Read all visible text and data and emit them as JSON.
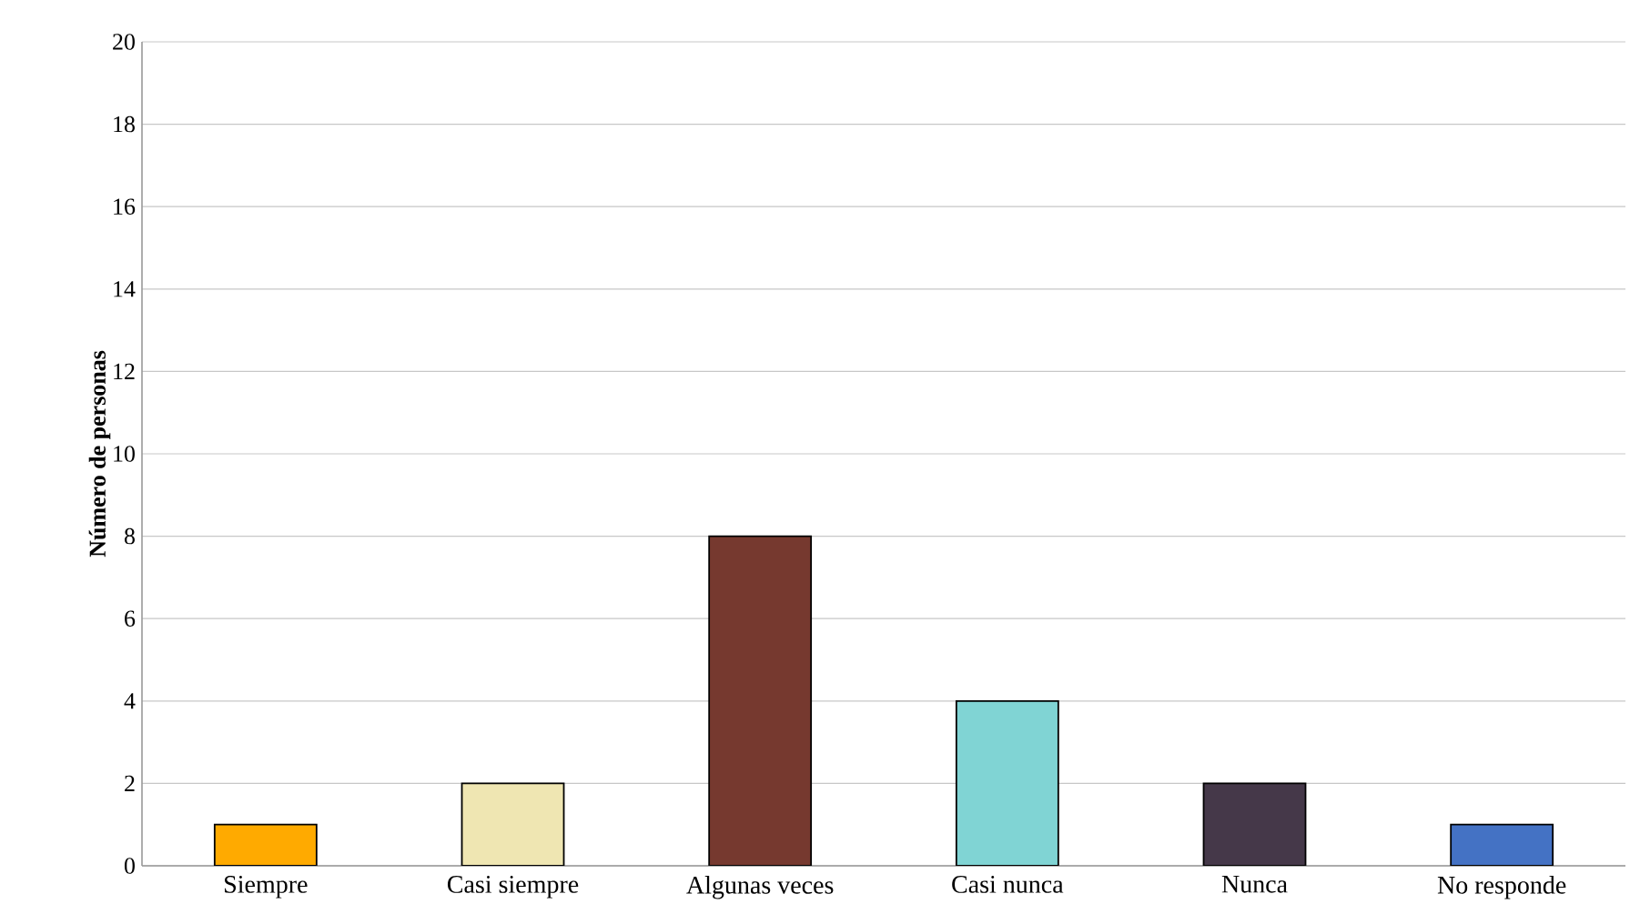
{
  "chart_data": {
    "type": "bar",
    "ylabel": "Número de personas",
    "categories": [
      "Siempre",
      "Casi siempre",
      "Algunas veces",
      "Casi nunca",
      "Nunca",
      "No responde"
    ],
    "values": [
      1,
      2,
      8,
      4,
      2,
      1
    ],
    "colors": [
      "#ffaa00",
      "#efe6b2",
      "#76392f",
      "#80d4d4",
      "#453849",
      "#4472c4"
    ],
    "ylim": [
      0,
      20
    ],
    "yticks": [
      0,
      2,
      4,
      6,
      8,
      10,
      12,
      14,
      16,
      18,
      20
    ],
    "grid": "y"
  }
}
